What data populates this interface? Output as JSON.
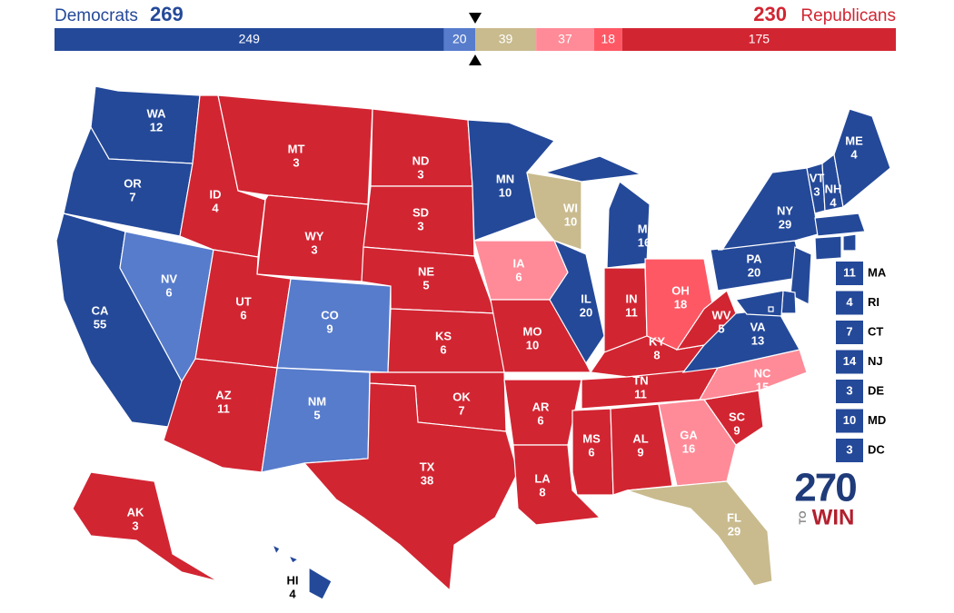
{
  "header": {
    "dem_label": "Democrats",
    "dem_total": 269,
    "rep_total": 230,
    "rep_label": "Republicans",
    "dem_color": "#244999",
    "rep_color": "#d22532"
  },
  "bar": {
    "segments": [
      {
        "value": 249,
        "color": "#244999"
      },
      {
        "value": 20,
        "color": "#577ccc"
      },
      {
        "value": 39,
        "color": "#c9bb8e"
      },
      {
        "value": 37,
        "color": "#ff8b98"
      },
      {
        "value": 18,
        "color": "#ff5865"
      },
      {
        "value": 175,
        "color": "#d22532"
      }
    ]
  },
  "states": [
    {
      "abbr": "WA",
      "votes": 12,
      "color": "#244999"
    },
    {
      "abbr": "OR",
      "votes": 7,
      "color": "#244999"
    },
    {
      "abbr": "CA",
      "votes": 55,
      "color": "#244999"
    },
    {
      "abbr": "NV",
      "votes": 6,
      "color": "#577ccc"
    },
    {
      "abbr": "ID",
      "votes": 4,
      "color": "#d22532"
    },
    {
      "abbr": "MT",
      "votes": 3,
      "color": "#d22532"
    },
    {
      "abbr": "WY",
      "votes": 3,
      "color": "#d22532"
    },
    {
      "abbr": "UT",
      "votes": 6,
      "color": "#d22532"
    },
    {
      "abbr": "CO",
      "votes": 9,
      "color": "#577ccc"
    },
    {
      "abbr": "AZ",
      "votes": 11,
      "color": "#d22532"
    },
    {
      "abbr": "NM",
      "votes": 5,
      "color": "#577ccc"
    },
    {
      "abbr": "ND",
      "votes": 3,
      "color": "#d22532"
    },
    {
      "abbr": "SD",
      "votes": 3,
      "color": "#d22532"
    },
    {
      "abbr": "NE",
      "votes": 5,
      "color": "#d22532"
    },
    {
      "abbr": "KS",
      "votes": 6,
      "color": "#d22532"
    },
    {
      "abbr": "OK",
      "votes": 7,
      "color": "#d22532"
    },
    {
      "abbr": "TX",
      "votes": 38,
      "color": "#d22532"
    },
    {
      "abbr": "MN",
      "votes": 10,
      "color": "#244999"
    },
    {
      "abbr": "IA",
      "votes": 6,
      "color": "#ff8b98"
    },
    {
      "abbr": "MO",
      "votes": 10,
      "color": "#d22532"
    },
    {
      "abbr": "AR",
      "votes": 6,
      "color": "#d22532"
    },
    {
      "abbr": "LA",
      "votes": 8,
      "color": "#d22532"
    },
    {
      "abbr": "WI",
      "votes": 10,
      "color": "#c9bb8e"
    },
    {
      "abbr": "IL",
      "votes": 20,
      "color": "#244999"
    },
    {
      "abbr": "MI",
      "votes": 16,
      "color": "#244999"
    },
    {
      "abbr": "IN",
      "votes": 11,
      "color": "#d22532"
    },
    {
      "abbr": "OH",
      "votes": 18,
      "color": "#ff5865"
    },
    {
      "abbr": "KY",
      "votes": 8,
      "color": "#d22532"
    },
    {
      "abbr": "TN",
      "votes": 11,
      "color": "#d22532"
    },
    {
      "abbr": "MS",
      "votes": 6,
      "color": "#d22532"
    },
    {
      "abbr": "AL",
      "votes": 9,
      "color": "#d22532"
    },
    {
      "abbr": "GA",
      "votes": 16,
      "color": "#ff8b98"
    },
    {
      "abbr": "FL",
      "votes": 29,
      "color": "#c9bb8e"
    },
    {
      "abbr": "SC",
      "votes": 9,
      "color": "#d22532"
    },
    {
      "abbr": "NC",
      "votes": 15,
      "color": "#ff8b98"
    },
    {
      "abbr": "VA",
      "votes": 13,
      "color": "#244999"
    },
    {
      "abbr": "WV",
      "votes": 5,
      "color": "#d22532"
    },
    {
      "abbr": "PA",
      "votes": 20,
      "color": "#244999"
    },
    {
      "abbr": "NY",
      "votes": 29,
      "color": "#244999"
    },
    {
      "abbr": "VT",
      "votes": 3,
      "color": "#244999"
    },
    {
      "abbr": "NH",
      "votes": 4,
      "color": "#244999"
    },
    {
      "abbr": "ME",
      "votes": 4,
      "color": "#244999"
    },
    {
      "abbr": "AK",
      "votes": 3,
      "color": "#d22532"
    },
    {
      "abbr": "HI",
      "votes": 4,
      "color": "#244999"
    }
  ],
  "small_states": [
    {
      "abbr": "MA",
      "votes": 11,
      "color": "#244999"
    },
    {
      "abbr": "RI",
      "votes": 4,
      "color": "#244999"
    },
    {
      "abbr": "CT",
      "votes": 7,
      "color": "#244999"
    },
    {
      "abbr": "NJ",
      "votes": 14,
      "color": "#244999"
    },
    {
      "abbr": "DE",
      "votes": 3,
      "color": "#244999"
    },
    {
      "abbr": "MD",
      "votes": 10,
      "color": "#244999"
    },
    {
      "abbr": "DC",
      "votes": 3,
      "color": "#244999"
    }
  ],
  "logo": {
    "number": "270",
    "to": "TO",
    "win": "WIN"
  }
}
